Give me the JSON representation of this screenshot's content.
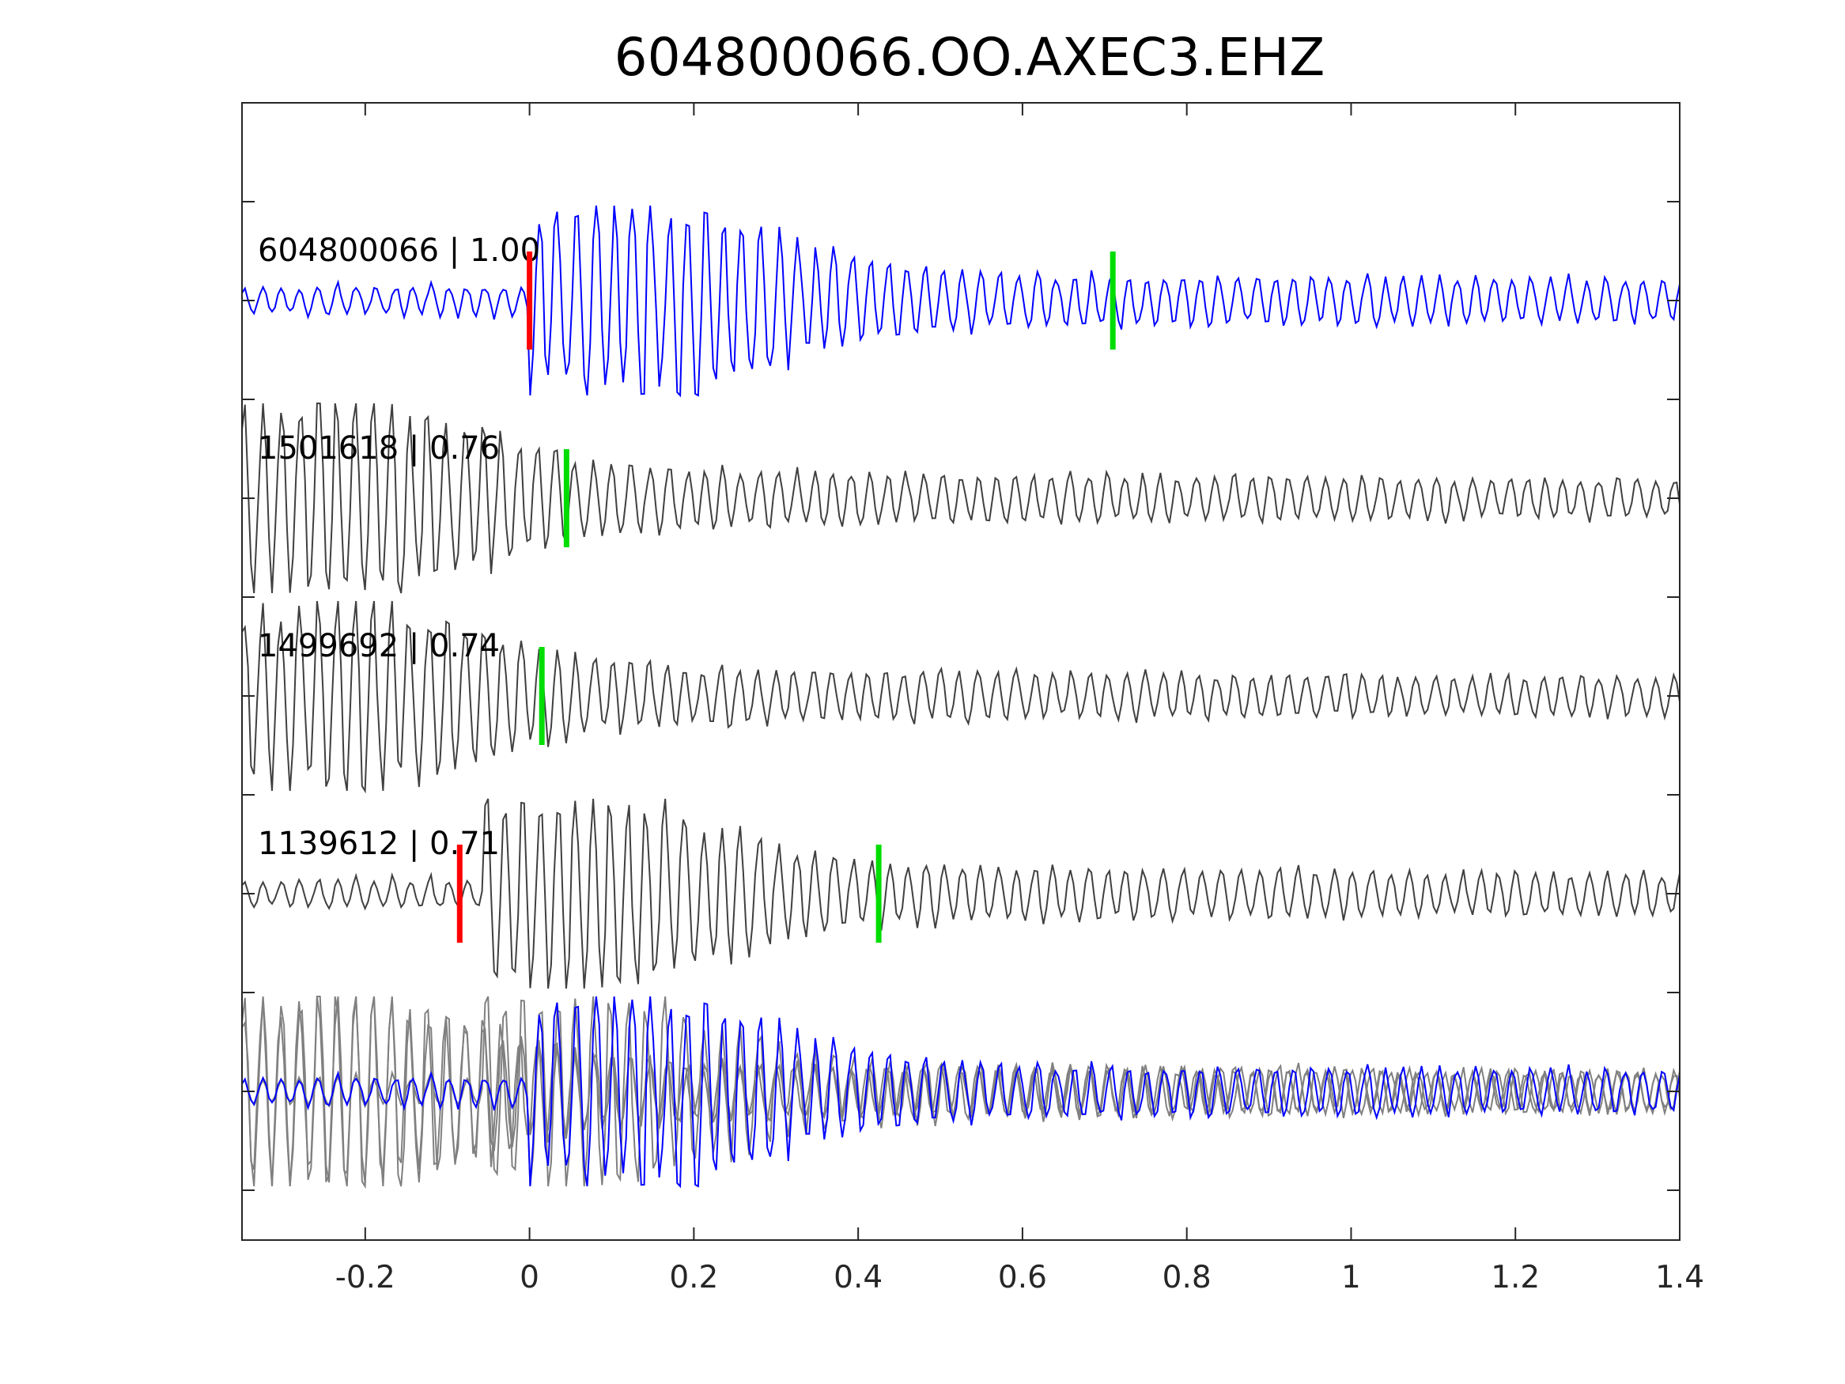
{
  "chart_data": {
    "type": "line",
    "title": "604800066.OO.AXEC3.EHZ",
    "xlim": [
      -0.35,
      1.4
    ],
    "xticks": [
      -0.2,
      0,
      0.2,
      0.4,
      0.6,
      0.8,
      1,
      1.2,
      1.4
    ],
    "xtick_labels": [
      "-0.2",
      "0",
      "0.2",
      "0.4",
      "0.6",
      "0.8",
      "1",
      "1.2",
      "1.4"
    ],
    "xlabel": "",
    "ylabel": "",
    "grid": false,
    "y_tick_count": 12,
    "colors": {
      "reference": "#0000ff",
      "match": "#404040",
      "stack": "#808080",
      "p_pick": "#ff0000",
      "s_pick": "#00dd00"
    },
    "traces": [
      {
        "label": "604800066 | 1.00",
        "event_id": "604800066",
        "correlation": 1.0,
        "color": "#0000ff",
        "p_pick": 0.0,
        "s_pick": 0.71,
        "onset": 0.0,
        "seed": 11
      },
      {
        "label": "1501618 | 0.76",
        "event_id": "1501618",
        "correlation": 0.76,
        "color": "#404040",
        "p_pick": null,
        "s_pick": 0.045,
        "onset": -0.35,
        "seed": 23
      },
      {
        "label": "1499692 | 0.74",
        "event_id": "1499692",
        "correlation": 0.74,
        "color": "#404040",
        "p_pick": null,
        "s_pick": 0.015,
        "onset": -0.35,
        "seed": 37
      },
      {
        "label": "1139612 | 0.71",
        "event_id": "1139612",
        "correlation": 0.71,
        "color": "#404040",
        "p_pick": -0.085,
        "s_pick": 0.425,
        "onset": -0.06,
        "seed": 53
      }
    ],
    "stack": {
      "description": "overlay of all traces",
      "reference_color": "#0000ff",
      "others_color": "#808080"
    }
  }
}
